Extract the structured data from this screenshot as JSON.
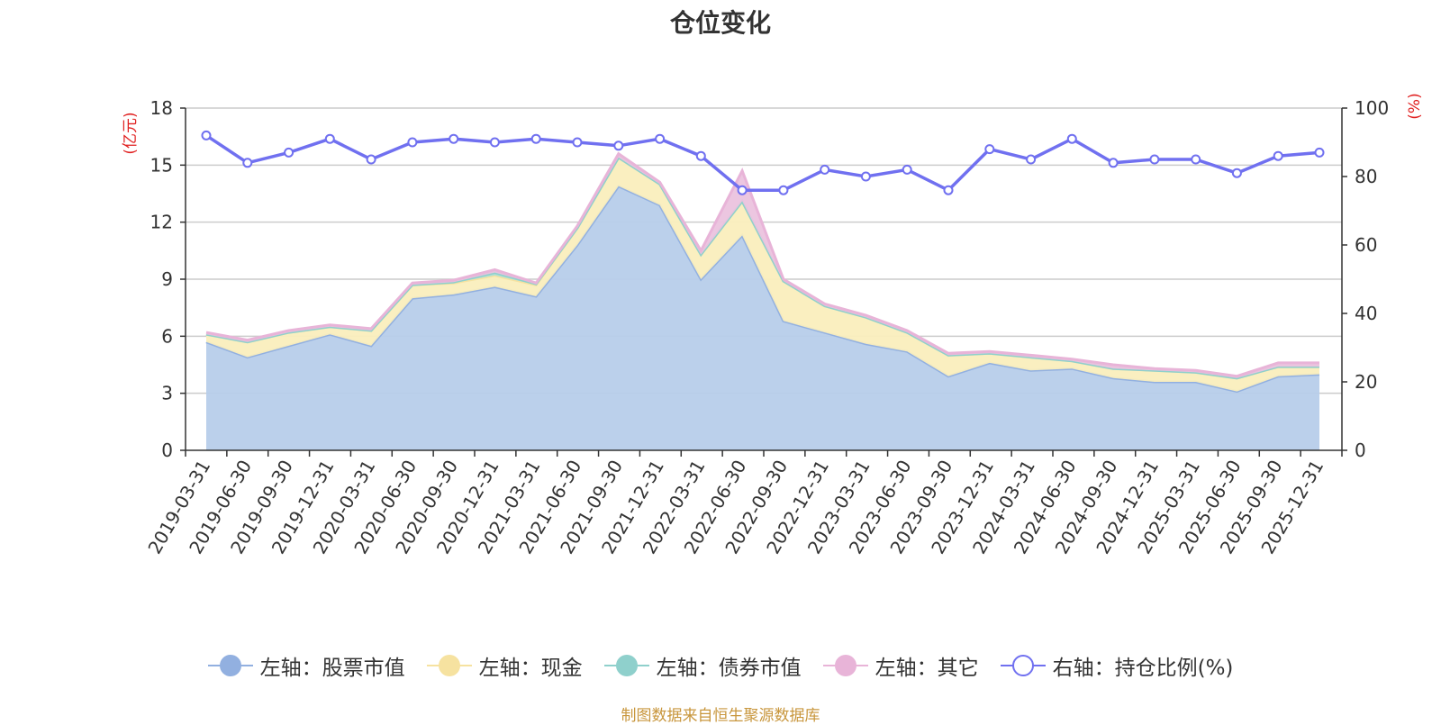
{
  "chart_data": {
    "type": "area",
    "title": "仓位变化",
    "left_axis": {
      "unit": "(亿元)",
      "ylim": [
        0,
        18
      ],
      "ticks": [
        0,
        3,
        6,
        9,
        12,
        15,
        18
      ]
    },
    "right_axis": {
      "unit": "(%)",
      "ylim": [
        0,
        100
      ],
      "ticks": [
        0,
        20,
        40,
        60,
        80,
        100
      ]
    },
    "categories": [
      "2019-03-31",
      "2019-06-30",
      "2019-09-30",
      "2019-12-31",
      "2020-03-31",
      "2020-06-30",
      "2020-09-30",
      "2020-12-31",
      "2021-03-31",
      "2021-06-30",
      "2021-09-30",
      "2021-12-31",
      "2022-03-31",
      "2022-06-30",
      "2022-09-30",
      "2022-12-31",
      "2023-03-31",
      "2023-06-30",
      "2023-09-30",
      "2023-12-31",
      "2024-03-31",
      "2024-06-30",
      "2024-09-30",
      "2024-12-31",
      "2025-03-31",
      "2025-06-30",
      "2025-09-30",
      "2025-12-31"
    ],
    "series": [
      {
        "name": "左轴：股票市值",
        "axis": "left",
        "stacked": true,
        "color": "#92b0e0",
        "fill": "#b7cdea",
        "values": [
          5.7,
          4.9,
          5.5,
          6.1,
          5.5,
          8.0,
          8.2,
          8.6,
          8.1,
          10.8,
          13.9,
          12.9,
          9.0,
          11.3,
          6.8,
          6.2,
          5.6,
          5.2,
          3.9,
          4.6,
          4.2,
          4.3,
          3.8,
          3.6,
          3.6,
          3.1,
          3.9,
          4.0
        ]
      },
      {
        "name": "左轴：现金",
        "axis": "left",
        "stacked": true,
        "color": "#f6e2a0",
        "fill": "#faeebd",
        "values": [
          0.4,
          0.8,
          0.7,
          0.4,
          0.8,
          0.7,
          0.6,
          0.6,
          0.6,
          0.9,
          1.5,
          1.1,
          1.3,
          1.8,
          2.1,
          1.4,
          1.4,
          1.0,
          1.1,
          0.5,
          0.7,
          0.4,
          0.5,
          0.6,
          0.5,
          0.7,
          0.5,
          0.4
        ]
      },
      {
        "name": "左轴：债券市值",
        "axis": "left",
        "stacked": true,
        "color": "#8fd0cc",
        "fill": "#a9ddd8",
        "values": [
          0,
          0,
          0,
          0,
          0,
          0,
          0.05,
          0.15,
          0.05,
          0,
          0,
          0,
          0,
          0,
          0,
          0,
          0,
          0,
          0,
          0,
          0,
          0,
          0,
          0,
          0,
          0,
          0,
          0
        ]
      },
      {
        "name": "左轴：其它",
        "axis": "left",
        "stacked": true,
        "color": "#e8b4d8",
        "fill": "#ebc3de",
        "values": [
          0.1,
          0.1,
          0.1,
          0.1,
          0.1,
          0.1,
          0.1,
          0.15,
          0.05,
          0.1,
          0.2,
          0.1,
          0.2,
          1.6,
          0.1,
          0.1,
          0.1,
          0.1,
          0.1,
          0.1,
          0.1,
          0.1,
          0.2,
          0.1,
          0.1,
          0.1,
          0.2,
          0.2
        ]
      },
      {
        "name": "右轴：持仓比例(%)",
        "axis": "right",
        "type": "line",
        "color": "#7070f0",
        "values": [
          92,
          84,
          87,
          91,
          85,
          90,
          91,
          90,
          91,
          90,
          89,
          91,
          86,
          76,
          76,
          82,
          80,
          82,
          76,
          88,
          85,
          91,
          84,
          85,
          85,
          81,
          86,
          87
        ]
      }
    ],
    "legend_position": "bottom-center",
    "source_note": "制图数据来自恒生聚源数据库"
  }
}
